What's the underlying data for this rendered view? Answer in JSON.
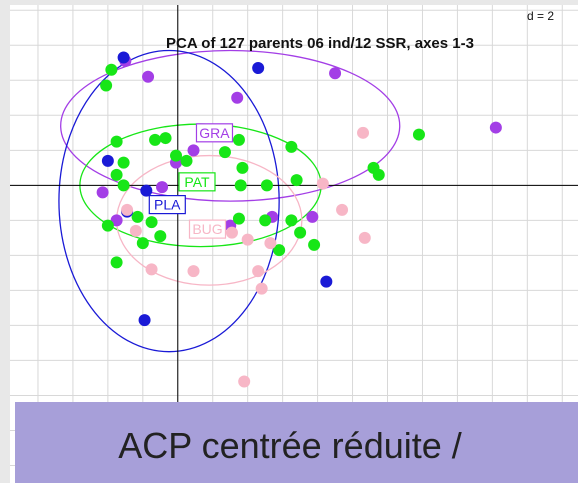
{
  "chart_data": {
    "type": "scatter",
    "title": "PCA of 127 parents 06 ind/12 SSR, axes 1-3",
    "scale_note": "d = 2",
    "xlim": [
      -9.6,
      22.9
    ],
    "ylim": [
      -17.0,
      10.3
    ],
    "xticks": [
      -8,
      -6,
      -4,
      -2,
      0,
      2,
      4,
      6,
      8,
      10,
      12,
      14,
      16,
      18,
      20,
      22
    ],
    "yticks": [
      -16,
      -14,
      -12,
      -10,
      -8,
      -6,
      -4,
      -2,
      0,
      2,
      4,
      6,
      8,
      10
    ],
    "grid": true,
    "series": [
      {
        "name": "GRA",
        "color": "#a33ee6",
        "center": [
          2.1,
          3.0
        ],
        "ellipse": {
          "cx": 3.0,
          "cy": 3.4,
          "rx": 9.7,
          "ry": 4.3
        },
        "x": [
          -3.0,
          -1.7,
          3.4,
          9.0,
          18.2,
          0.9,
          -0.1,
          -4.3,
          -0.9,
          5.4,
          7.7,
          -3.5,
          3.0
        ],
        "values": [
          7.1,
          6.2,
          5.0,
          6.4,
          3.3,
          2.0,
          1.3,
          -0.4,
          -0.1,
          -1.8,
          -1.8,
          -2.0,
          -2.3
        ]
      },
      {
        "name": "PAT",
        "color": "#17e617",
        "center": [
          1.1,
          0.2
        ],
        "ellipse": {
          "cx": 1.3,
          "cy": 0.0,
          "rx": 6.9,
          "ry": 3.5
        },
        "x": [
          -3.8,
          -4.1,
          -3.5,
          -1.3,
          -0.7,
          -0.1,
          0.5,
          2.7,
          3.5,
          6.5,
          13.8,
          11.2,
          11.5,
          -3.1,
          -3.5,
          -3.1,
          1.0,
          3.6,
          5.1,
          6.8,
          3.7,
          -2.3,
          -1.5,
          -1.0,
          -2.0,
          -4.0,
          -3.5,
          3.5,
          5.0,
          6.5,
          7.0,
          7.8,
          5.8
        ],
        "values": [
          6.6,
          5.7,
          2.5,
          2.6,
          2.7,
          1.7,
          1.4,
          1.9,
          2.6,
          2.2,
          2.9,
          1.0,
          0.6,
          1.3,
          0.6,
          0.0,
          0.4,
          0.0,
          0.0,
          0.3,
          1.0,
          -1.8,
          -2.1,
          -2.9,
          -3.3,
          -2.3,
          -4.4,
          -1.9,
          -2.0,
          -2.0,
          -2.7,
          -3.4,
          -3.7
        ]
      },
      {
        "name": "PLA",
        "color": "#1a1ad6",
        "center": [
          -0.6,
          -1.1
        ],
        "ellipse": {
          "cx": -0.5,
          "cy": -0.9,
          "rx": 6.3,
          "ry": 8.6
        },
        "x": [
          -3.1,
          4.6,
          -4.0,
          -1.8,
          -2.9,
          8.5,
          -1.9
        ],
        "values": [
          7.3,
          6.7,
          1.4,
          -0.3,
          -1.5,
          -5.5,
          -7.7
        ]
      },
      {
        "name": "BUG",
        "color": "#f7b6c6",
        "center": [
          1.7,
          -2.5
        ],
        "ellipse": {
          "cx": 1.8,
          "cy": -2.0,
          "rx": 5.3,
          "ry": 3.7
        },
        "x": [
          10.6,
          8.3,
          9.4,
          10.7,
          -2.9,
          -2.4,
          1.0,
          3.1,
          4.0,
          5.3,
          -1.5,
          0.9,
          4.6,
          4.8,
          3.8
        ],
        "values": [
          3.0,
          0.1,
          -1.4,
          -3.0,
          -1.4,
          -2.6,
          -2.6,
          -2.7,
          -3.1,
          -3.3,
          -4.8,
          -4.9,
          -4.9,
          -5.9,
          -11.2
        ]
      }
    ]
  },
  "banner": "ACP centrée réduite /"
}
